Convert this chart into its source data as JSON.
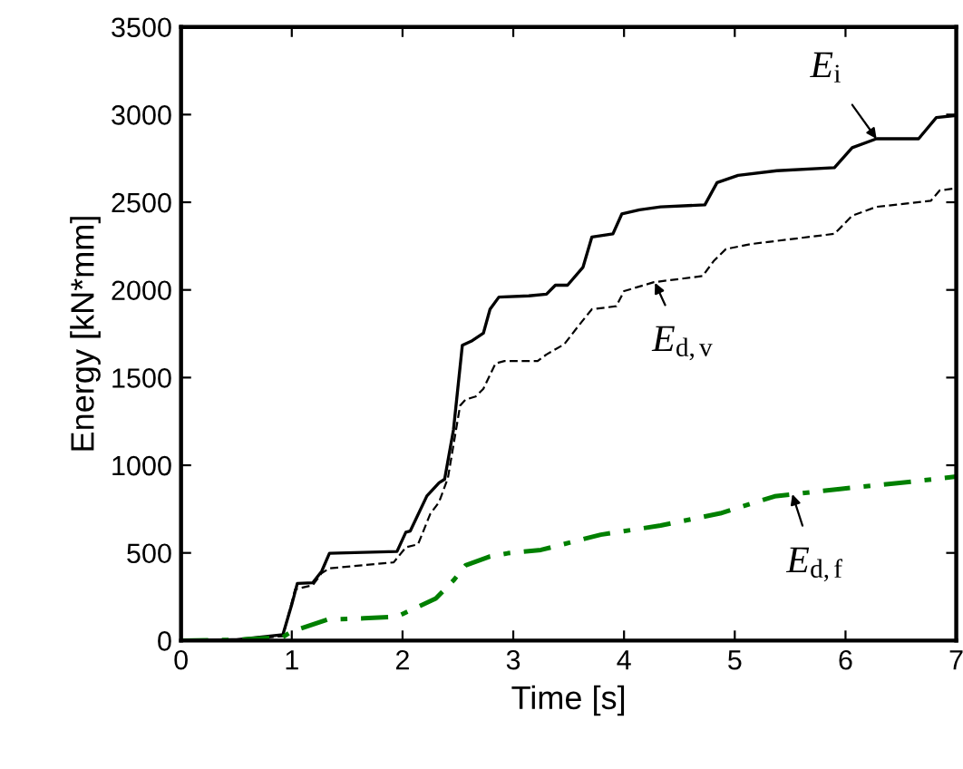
{
  "chart_data": {
    "type": "line",
    "xlabel": "Time [s]",
    "ylabel": "Energy [kN*mm]",
    "xlim": [
      0,
      7
    ],
    "xticks": [
      0,
      1,
      2,
      3,
      4,
      5,
      6,
      7
    ],
    "ylim": [
      0,
      3500
    ],
    "yticks": [
      0,
      500,
      1000,
      1500,
      2000,
      2500,
      3000,
      3500
    ],
    "grid": false,
    "legend": false,
    "marker": "none",
    "series": [
      {
        "color": "#000000",
        "line_style": "solid",
        "x": [
          0,
          0.5,
          0.92,
          1.0,
          1.05,
          1.19,
          1.27,
          1.34,
          1.95,
          2.03,
          2.07,
          2.22,
          2.33,
          2.38,
          2.46,
          2.54,
          2.62,
          2.73,
          2.79,
          2.87,
          3.14,
          3.3,
          3.38,
          3.49,
          3.63,
          3.71,
          3.9,
          3.98,
          4.14,
          4.33,
          4.73,
          4.84,
          5.03,
          5.38,
          5.9,
          6.06,
          6.28,
          6.66,
          6.82,
          7.0
        ],
        "values": [
          0,
          5,
          34,
          206,
          326,
          330,
          395,
          498,
          508,
          618,
          625,
          825,
          900,
          920,
          1202,
          1684,
          1707,
          1753,
          1890,
          1959,
          1966,
          1976,
          2027,
          2027,
          2130,
          2302,
          2320,
          2433,
          2457,
          2474,
          2485,
          2612,
          2653,
          2680,
          2697,
          2811,
          2862,
          2862,
          2983,
          2995
        ]
      },
      {
        "color": "#000000",
        "line_style": "dashed",
        "x": [
          0,
          0.5,
          0.92,
          1.03,
          1.19,
          1.27,
          1.34,
          1.92,
          2.03,
          2.14,
          2.25,
          2.33,
          2.41,
          2.52,
          2.57,
          2.66,
          2.73,
          2.84,
          2.92,
          3.22,
          3.3,
          3.46,
          3.6,
          3.71,
          3.93,
          4.0,
          4.27,
          4.71,
          4.81,
          4.92,
          5.14,
          5.9,
          6.06,
          6.28,
          6.77,
          6.85,
          7.0
        ],
        "values": [
          0,
          4,
          25,
          292,
          316,
          385,
          412,
          446,
          532,
          549,
          722,
          790,
          928,
          1340,
          1375,
          1392,
          1436,
          1581,
          1594,
          1594,
          1632,
          1690,
          1804,
          1890,
          1907,
          1993,
          2044,
          2079,
          2165,
          2233,
          2261,
          2320,
          2423,
          2474,
          2508,
          2567,
          2580
        ]
      },
      {
        "color": "#008000",
        "line_style": "dashdot",
        "x": [
          0,
          0.5,
          0.92,
          1.0,
          1.32,
          1.65,
          1.95,
          2.3,
          2.46,
          2.57,
          2.79,
          2.95,
          3.25,
          3.79,
          4.33,
          4.87,
          5.36,
          5.95,
          6.49,
          7.0
        ],
        "values": [
          0,
          4,
          20,
          52,
          120,
          127,
          137,
          240,
          343,
          429,
          480,
          498,
          517,
          604,
          656,
          726,
          823,
          865,
          899,
          935
        ]
      }
    ],
    "annotations": [
      {
        "text": "E$_{i}$",
        "x": 6.28,
        "y": 2862
      },
      {
        "text": "E$_{d,v}$",
        "x": 4.28,
        "y": 2040
      },
      {
        "text": "E$_{d,f}$",
        "x": 5.52,
        "y": 835
      }
    ]
  }
}
